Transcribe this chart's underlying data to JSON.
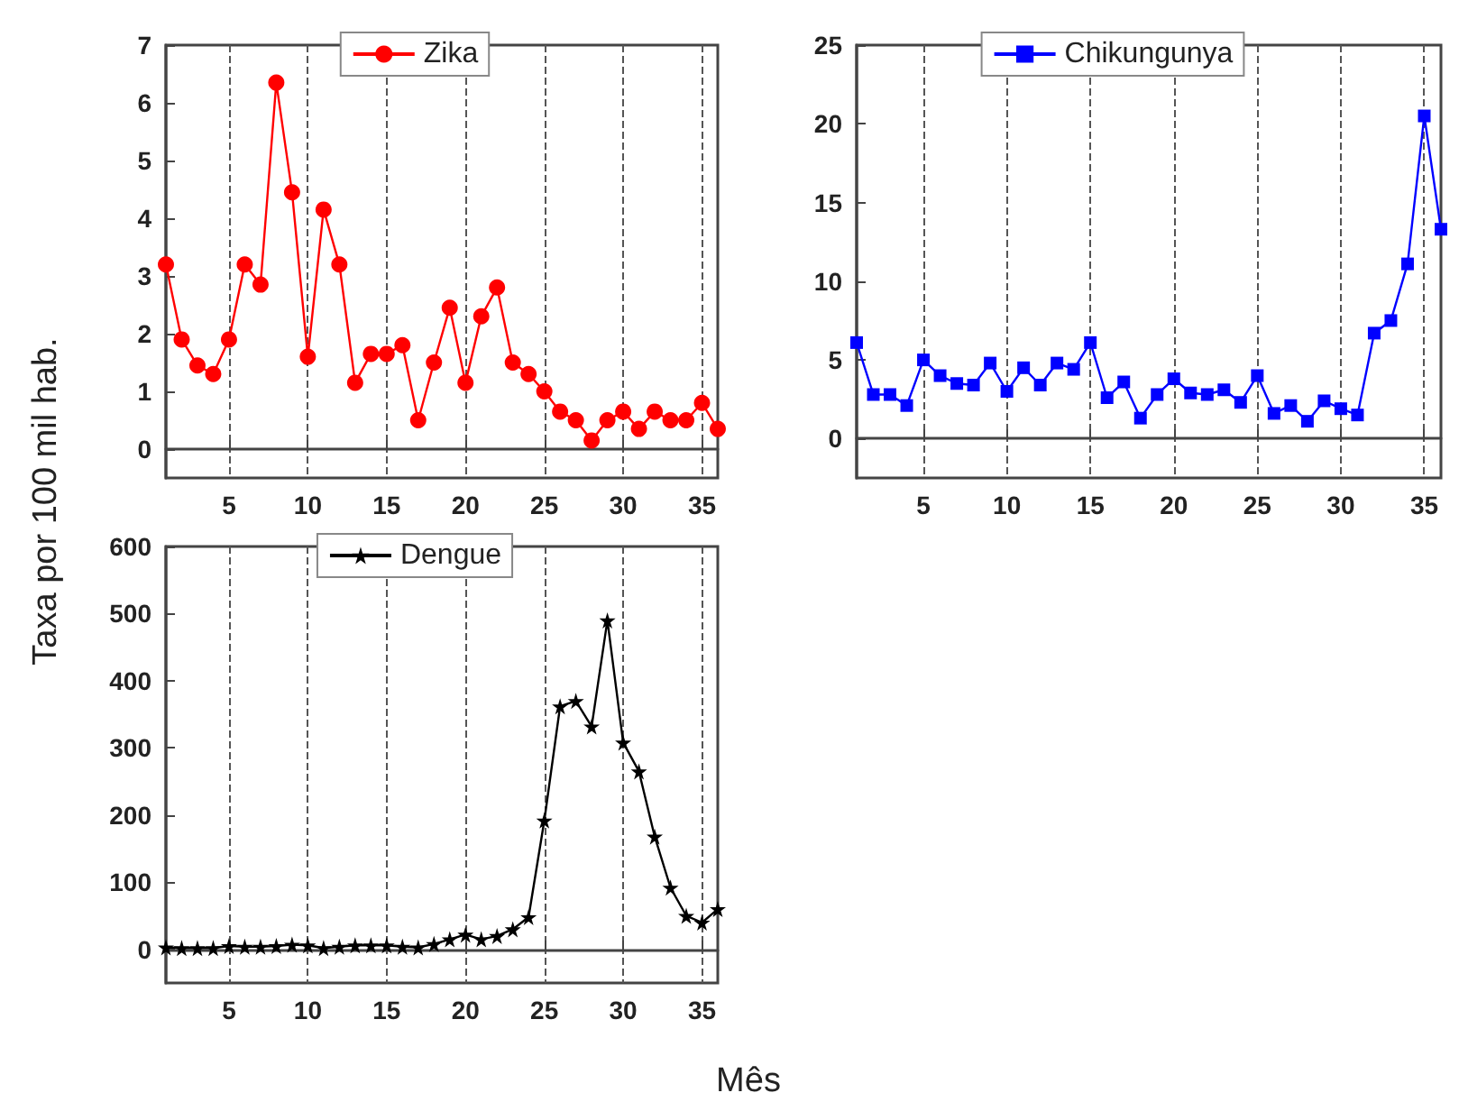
{
  "chart_data": [
    {
      "type": "line",
      "x": [
        1,
        2,
        3,
        4,
        5,
        6,
        7,
        8,
        9,
        10,
        11,
        12,
        13,
        14,
        15,
        16,
        17,
        18,
        19,
        20,
        21,
        22,
        23,
        24,
        25,
        26,
        27,
        28,
        29,
        30,
        31,
        32,
        33,
        34,
        35,
        36
      ],
      "series": [
        {
          "name": "Zika",
          "color": "#ff0000",
          "values": [
            3.2,
            1.9,
            1.45,
            1.3,
            1.9,
            3.2,
            2.85,
            6.35,
            4.45,
            1.6,
            4.15,
            3.2,
            1.15,
            1.65,
            1.65,
            1.8,
            0.5,
            1.5,
            2.45,
            1.15,
            2.3,
            2.8,
            1.5,
            1.3,
            1.0,
            0.65,
            0.5,
            0.15,
            0.5,
            0.65,
            0.35,
            0.65,
            0.5,
            0.5,
            0.8,
            0.35
          ]
        }
      ],
      "marker": "circle",
      "xlim": [
        1,
        36
      ],
      "xticks": [
        5,
        10,
        15,
        20,
        25,
        30,
        35
      ],
      "ylim": [
        -0.5,
        7
      ],
      "yticks": [
        0,
        1,
        2,
        3,
        4,
        5,
        6,
        7
      ],
      "grid": "x",
      "legend": "top"
    },
    {
      "type": "line",
      "x": [
        1,
        2,
        3,
        4,
        5,
        6,
        7,
        8,
        9,
        10,
        11,
        12,
        13,
        14,
        15,
        16,
        17,
        18,
        19,
        20,
        21,
        22,
        23,
        24,
        25,
        26,
        27,
        28,
        29,
        30,
        31,
        32,
        33,
        34,
        35,
        36
      ],
      "series": [
        {
          "name": "Chikungunya",
          "color": "#0000ff",
          "values": [
            6.1,
            2.8,
            2.8,
            2.1,
            5.0,
            4.0,
            3.5,
            3.4,
            4.8,
            3.0,
            4.5,
            3.4,
            4.8,
            4.4,
            6.1,
            2.6,
            3.6,
            1.3,
            2.8,
            3.8,
            2.9,
            2.8,
            3.1,
            2.3,
            4.0,
            1.6,
            2.1,
            1.1,
            2.4,
            1.9,
            1.5,
            6.7,
            7.5,
            11.1,
            20.5,
            13.3
          ]
        }
      ],
      "marker": "square",
      "xlim": [
        1,
        36
      ],
      "xticks": [
        5,
        10,
        15,
        20,
        25,
        30,
        35
      ],
      "ylim": [
        -2.5,
        25
      ],
      "yticks": [
        0,
        5,
        10,
        15,
        20,
        25
      ],
      "grid": "x",
      "legend": "top"
    },
    {
      "type": "line",
      "xlabel": "Mês",
      "ylabel": "Taxa por 100 mil hab.",
      "x": [
        1,
        2,
        3,
        4,
        5,
        6,
        7,
        8,
        9,
        10,
        11,
        12,
        13,
        14,
        15,
        16,
        17,
        18,
        19,
        20,
        21,
        22,
        23,
        24,
        25,
        26,
        27,
        28,
        29,
        30,
        31,
        32,
        33,
        34,
        35,
        36
      ],
      "series": [
        {
          "name": "Dengue",
          "color": "#000000",
          "values": [
            3,
            2,
            2,
            2,
            5,
            4,
            4,
            5,
            7,
            6,
            2,
            4,
            6,
            6,
            6,
            4,
            3,
            8,
            15,
            22,
            15,
            20,
            30,
            48,
            192,
            362,
            370,
            332,
            490,
            308,
            265,
            168,
            92,
            50,
            40,
            60
          ]
        }
      ],
      "marker": "star",
      "xlim": [
        1,
        36
      ],
      "xticks": [
        5,
        10,
        15,
        20,
        25,
        30,
        35
      ],
      "ylim": [
        -50,
        600
      ],
      "yticks": [
        0,
        100,
        200,
        300,
        400,
        500,
        600
      ],
      "grid": "x",
      "legend": "top"
    }
  ]
}
